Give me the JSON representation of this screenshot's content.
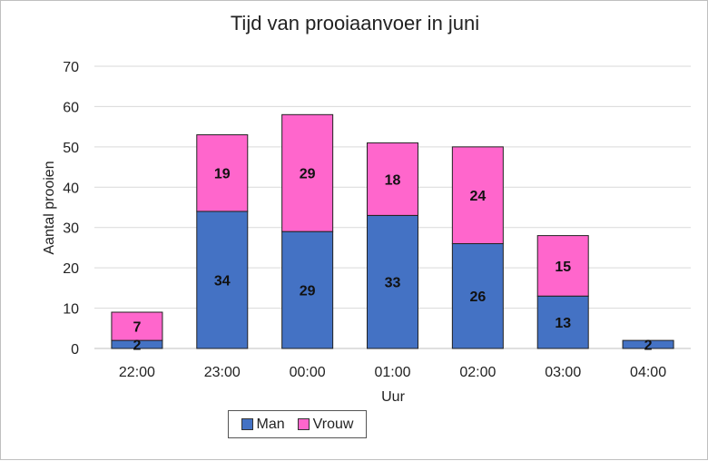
{
  "chart_data": {
    "type": "bar",
    "stacked": true,
    "title": "Tijd van prooiaanvoer in juni",
    "xlabel": "Uur",
    "ylabel": "Aantal prooien",
    "categories": [
      "22:00",
      "23:00",
      "00:00",
      "01:00",
      "02:00",
      "03:00",
      "04:00"
    ],
    "series": [
      {
        "name": "Man",
        "color": "#4472c4",
        "values": [
          2,
          34,
          29,
          33,
          26,
          13,
          2
        ]
      },
      {
        "name": "Vrouw",
        "color": "#ff66cc",
        "values": [
          7,
          19,
          29,
          18,
          24,
          15,
          0
        ]
      }
    ],
    "ylim": [
      0,
      70
    ],
    "yticks": [
      0,
      10,
      20,
      30,
      40,
      50,
      60,
      70
    ],
    "grid": true,
    "legend_position": "bottom"
  }
}
